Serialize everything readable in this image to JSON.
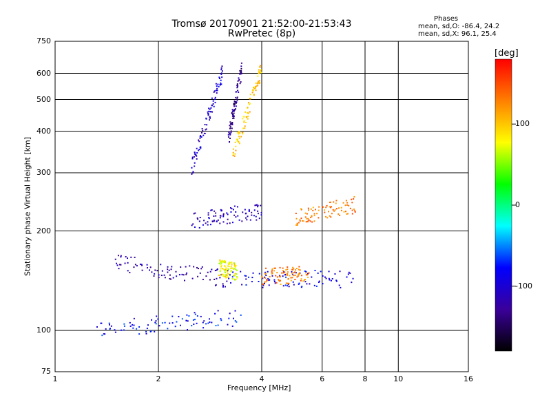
{
  "header": {
    "title_line1": "Tromsø 20170901 21:52:00-21:53:43",
    "title_line2": "RwPretec (8p)"
  },
  "phases": {
    "title": "Phases",
    "o_text": "mean, sd,O: -86.4, 24.2",
    "x_text": "mean, sd,X:  96.1, 25.4"
  },
  "colorbar": {
    "unit": "[deg]",
    "ticks": [
      "100",
      "0",
      "-100"
    ],
    "colors": [
      "#ff0000",
      "#ff8000",
      "#ffff00",
      "#00ff00",
      "#00ffff",
      "#0000ff",
      "#3b009a",
      "#000000"
    ]
  },
  "chart_data": {
    "type": "scatter",
    "title": "Tromsø 20170901 21:52:00-21:53:43",
    "subtitle": "RwPretec (8p)",
    "xlabel": "Frequency [MHz]",
    "ylabel": "Stationary phase Virtual Height [km]",
    "x_scale": "log",
    "y_scale": "log",
    "xlim": [
      1,
      16
    ],
    "ylim": [
      75,
      750
    ],
    "x_ticks": [
      "1",
      "2",
      "4",
      "6",
      "8",
      "10",
      "16"
    ],
    "y_ticks": [
      "75",
      "100",
      "200",
      "300",
      "400",
      "500",
      "600",
      "750"
    ],
    "grid": true,
    "color_scale": "phase [deg]",
    "traces": [
      {
        "name": "F-layer rising trace (blue)",
        "x0": 2.5,
        "x1": 3.1,
        "y0": 310,
        "y1": 620,
        "phase": -100
      },
      {
        "name": "F-layer rising trace (violet)",
        "x0": 3.2,
        "x1": 3.5,
        "y0": 380,
        "y1": 620,
        "phase": -130
      },
      {
        "name": "F-layer rising trace (yellow)",
        "x0": 3.3,
        "x1": 4.0,
        "y0": 340,
        "y1": 620,
        "phase": 100
      },
      {
        "name": "E-layer trace",
        "x0": 1.5,
        "x1": 3.2,
        "y0": 160,
        "y1": 143,
        "phase": -120
      },
      {
        "name": "E-layer trace (yellow-green)",
        "x0": 3.0,
        "x1": 3.4,
        "y0": 155,
        "y1": 150,
        "phase": 80
      },
      {
        "name": "lower trace",
        "x0": 3.2,
        "x1": 7.5,
        "y0": 143,
        "y1": 143,
        "phase": -90
      },
      {
        "name": "mid trace (orange)",
        "x0": 4.0,
        "x1": 5.5,
        "y0": 145,
        "y1": 148,
        "phase": 130
      },
      {
        "name": "upper echoes (orange)",
        "x0": 5.0,
        "x1": 7.5,
        "y0": 220,
        "y1": 240,
        "phase": 130
      },
      {
        "name": "upper echoes (blue)",
        "x0": 2.5,
        "x1": 4.0,
        "y0": 215,
        "y1": 230,
        "phase": -110
      },
      {
        "name": "low echoes",
        "x0": 1.3,
        "x1": 3.5,
        "y0": 100,
        "y1": 110,
        "phase": -80
      }
    ]
  }
}
